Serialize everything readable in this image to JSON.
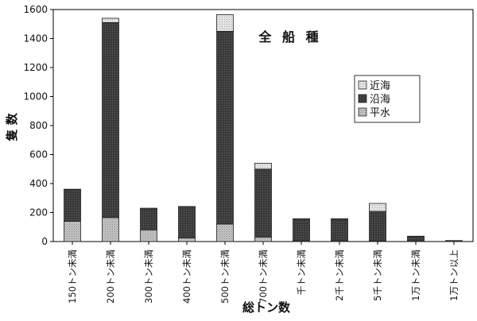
{
  "chart_data": {
    "type": "bar",
    "stacked": true,
    "title": "全 船 種",
    "xlabel": "総トン数",
    "ylabel": "隻 数",
    "ylim": [
      0,
      1600
    ],
    "yticks": [
      0,
      200,
      400,
      600,
      800,
      1000,
      1200,
      1400,
      1600
    ],
    "grid": false,
    "legend_position": "right",
    "categories": [
      "150トン未満",
      "200トン未満",
      "300トン未満",
      "400トン未満",
      "500トン未満",
      "700トン未満",
      "千トン未満",
      "2千トン未満",
      "5千トン未満",
      "1万トン未満",
      "1万トン以上"
    ],
    "series": [
      {
        "name": "平水",
        "color": "#bdbdbd",
        "values": [
          140,
          165,
          80,
          25,
          120,
          30,
          5,
          5,
          3,
          2,
          1
        ]
      },
      {
        "name": "沿海",
        "color": "#3a3a3a",
        "values": [
          218,
          1345,
          145,
          212,
          1330,
          470,
          148,
          148,
          205,
          33,
          5
        ]
      },
      {
        "name": "近海",
        "color": "#dedede",
        "values": [
          3,
          30,
          5,
          5,
          115,
          40,
          5,
          5,
          55,
          2,
          1
        ]
      }
    ],
    "legend_order": [
      "近海",
      "沿海",
      "平水"
    ]
  }
}
